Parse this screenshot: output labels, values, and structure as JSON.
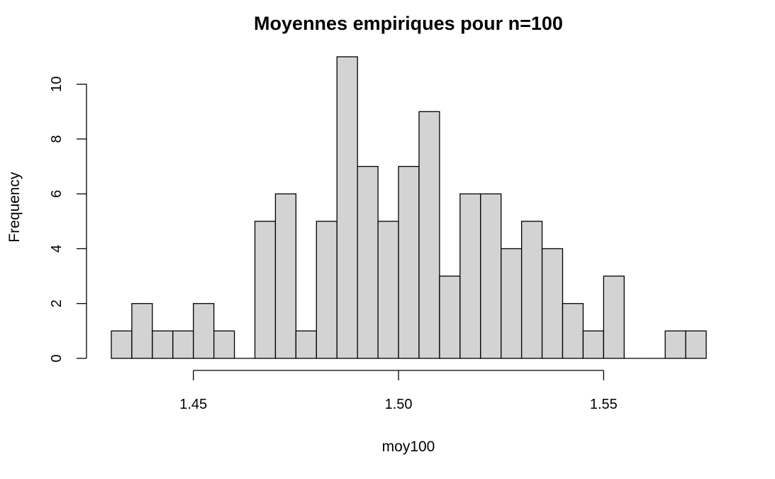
{
  "chart_data": {
    "type": "bar",
    "title": "Moyennes empiriques pour n=100",
    "xlabel": "moy100",
    "ylabel": "Frequency",
    "bar_color": "#d3d3d3",
    "bin_width": 0.005,
    "bins_start": [
      1.43,
      1.435,
      1.44,
      1.445,
      1.45,
      1.455,
      1.46,
      1.465,
      1.47,
      1.475,
      1.48,
      1.485,
      1.49,
      1.495,
      1.5,
      1.505,
      1.51,
      1.515,
      1.52,
      1.525,
      1.53,
      1.535,
      1.54,
      1.545,
      1.55,
      1.555,
      1.56,
      1.565,
      1.57
    ],
    "values": [
      1,
      2,
      1,
      1,
      2,
      1,
      0,
      5,
      6,
      1,
      5,
      11,
      7,
      5,
      7,
      9,
      3,
      6,
      6,
      4,
      5,
      4,
      2,
      1,
      3,
      0,
      0,
      1,
      1
    ],
    "xlim": [
      1.43,
      1.575
    ],
    "ylim": [
      0,
      11
    ],
    "x_ticks": [
      1.45,
      1.5,
      1.55
    ],
    "x_tick_labels": [
      "1.45",
      "1.50",
      "1.55"
    ],
    "y_ticks": [
      0,
      2,
      4,
      6,
      8,
      10
    ],
    "y_tick_labels": [
      "0",
      "2",
      "4",
      "6",
      "8",
      "10"
    ],
    "grid": false,
    "legend": "none"
  }
}
